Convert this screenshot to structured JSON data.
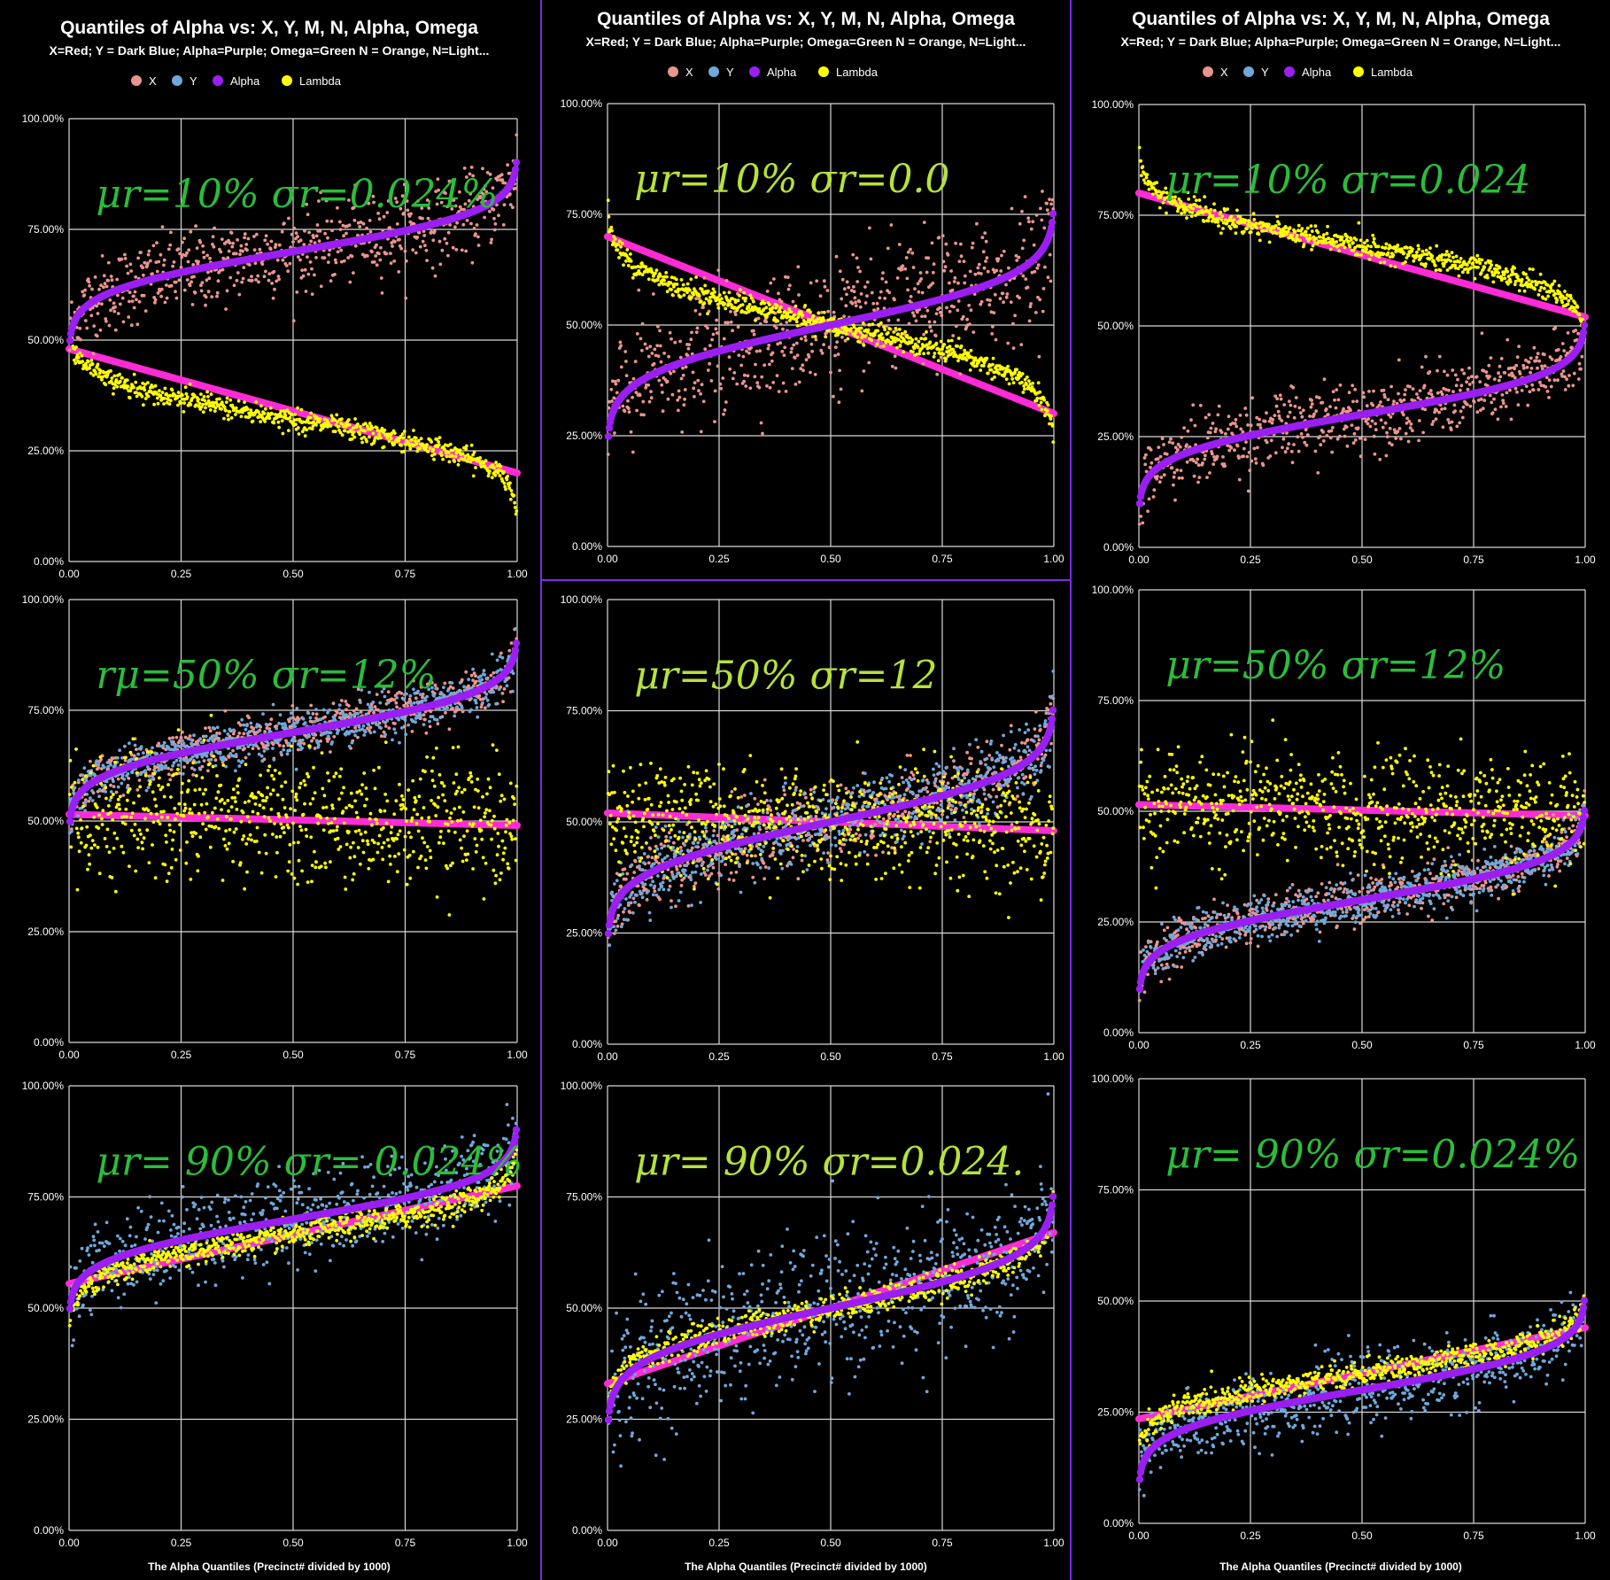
{
  "columns": [
    {
      "title": "Quantiles of Alpha vs: X, Y, M, N, Alpha, Omega",
      "subtitle": "X=Red; Y = Dark Blue; Alpha=Purple; Omega=Green N = Orange, N=Light...",
      "xlabel": "The Alpha Quantiles (Precinct# divided by 1000)",
      "legend": [
        {
          "label": "X",
          "color": "#e9958f"
        },
        {
          "label": "Y",
          "color": "#6fa8dc"
        },
        {
          "label": "Alpha",
          "color": "#9b1ff2"
        },
        {
          "label": "Lambda",
          "color": "#ffff00"
        }
      ]
    },
    {
      "title": "Quantiles of Alpha vs: X, Y, M, N, Alpha, Omega",
      "subtitle": "X=Red; Y = Dark Blue; Alpha=Purple; Omega=Green N = Orange, N=Light...",
      "xlabel": "The Alpha Quantiles (Precinct# divided by 1000)",
      "legend": [
        {
          "label": "X",
          "color": "#e9958f"
        },
        {
          "label": "Y",
          "color": "#6fa8dc"
        },
        {
          "label": "Alpha",
          "color": "#9b1ff2"
        },
        {
          "label": "Lambda",
          "color": "#ffff00"
        }
      ]
    },
    {
      "title": "Quantiles of Alpha vs: X, Y, M, N, Alpha, Omega",
      "subtitle": "X=Red; Y = Dark Blue; Alpha=Purple; Omega=Green N = Orange, N=Light...",
      "xlabel": "The Alpha Quantiles (Precinct# divided by 1000)",
      "legend": [
        {
          "label": "X",
          "color": "#e9958f"
        },
        {
          "label": "Y",
          "color": "#6fa8dc"
        },
        {
          "label": "Alpha",
          "color": "#9b1ff2"
        },
        {
          "label": "Lambda",
          "color": "#ffff00"
        }
      ]
    }
  ],
  "annotations": [
    {
      "text": "μr=10%   σr=0.024%",
      "color": "#2bbd3a"
    },
    {
      "text": "μr=10%   σr=0.0",
      "color": "#b6e23a"
    },
    {
      "text": "μr=10%   σr=0.024",
      "color": "#2bbd3a"
    },
    {
      "text": "rμ=50%   σr=12%",
      "color": "#2bbd3a"
    },
    {
      "text": "μr=50%   σr=12",
      "color": "#b6e23a"
    },
    {
      "text": "μr=50%   σr=12%",
      "color": "#2bbd3a"
    },
    {
      "text": "μr= 90%   σr= 0.024%",
      "color": "#2bbd3a"
    },
    {
      "text": "μr= 90%   σr=0.024.",
      "color": "#b6e23a"
    },
    {
      "text": "μr= 90%   σr=0.024%",
      "color": "#2bbd3a"
    }
  ],
  "chart_data": [
    {
      "type": "scatter",
      "ylim": [
        0,
        1
      ],
      "xlim": [
        0,
        1
      ],
      "xticks": [
        "0.00",
        "0.25",
        "0.50",
        "0.75",
        "1.00"
      ],
      "yticks": [
        "0.00%",
        "25.00%",
        "50.00%",
        "75.00%",
        "100.00%"
      ],
      "grid": true,
      "legend_position": "top",
      "series": [
        {
          "name": "X",
          "color": "#e9958f",
          "center": 0.7,
          "spread": 0.24,
          "noise": 0.045,
          "endpoint_sigma": 0.18
        },
        {
          "name": "Alpha",
          "color": "#9b1ff2",
          "center": 0.7,
          "spread": 0.24,
          "noise": 0.0
        },
        {
          "name": "Lambda",
          "color": "#ffff00",
          "center": 0.32,
          "spread": -0.24,
          "noise": 0.012,
          "trend": [
            0.5,
            0.2
          ]
        }
      ],
      "trendline": {
        "color": "#ff2bd6",
        "from": 0.48,
        "to": 0.2
      }
    },
    {
      "type": "scatter",
      "ylim": [
        0,
        1
      ],
      "xlim": [
        0,
        1
      ],
      "xticks": [
        "0.00",
        "0.25",
        "0.50",
        "0.75",
        "1.00"
      ],
      "yticks": [
        "0.00%",
        "25.00%",
        "50.00%",
        "75.00%",
        "100.00%"
      ],
      "grid": true,
      "legend_position": "top",
      "series": [
        {
          "name": "X",
          "color": "#e9958f",
          "center": 0.5,
          "spread": 0.3,
          "noise": 0.07
        },
        {
          "name": "Alpha",
          "color": "#9b1ff2",
          "center": 0.5,
          "spread": 0.3,
          "noise": 0.0
        },
        {
          "name": "Lambda",
          "color": "#ffff00",
          "center": 0.5,
          "spread": -0.3,
          "noise": 0.012
        }
      ],
      "trendline": {
        "color": "#ff2bd6",
        "from": 0.7,
        "to": 0.3
      }
    },
    {
      "type": "scatter",
      "ylim": [
        0,
        1
      ],
      "xlim": [
        0,
        1
      ],
      "xticks": [
        "0.00",
        "0.25",
        "0.50",
        "0.75",
        "1.00"
      ],
      "yticks": [
        "0.00%",
        "25.00%",
        "50.00%",
        "75.00%",
        "100.00%"
      ],
      "grid": true,
      "legend_position": "top",
      "series": [
        {
          "name": "X",
          "color": "#e9958f",
          "center": 0.3,
          "spread": 0.24,
          "noise": 0.04
        },
        {
          "name": "Alpha",
          "color": "#9b1ff2",
          "center": 0.3,
          "spread": 0.24,
          "noise": 0.0
        },
        {
          "name": "Lambda",
          "color": "#ffff00",
          "center": 0.68,
          "spread": -0.24,
          "noise": 0.012
        }
      ],
      "trendline": {
        "color": "#ff2bd6",
        "from": 0.8,
        "to": 0.52
      }
    },
    {
      "type": "scatter",
      "ylim": [
        0,
        1
      ],
      "xlim": [
        0,
        1
      ],
      "xticks": [
        "0.00",
        "0.25",
        "0.50",
        "0.75",
        "1.00"
      ],
      "yticks": [
        "0.00%",
        "25.00%",
        "50.00%",
        "75.00%",
        "100.00%"
      ],
      "grid": true,
      "series": [
        {
          "name": "X",
          "color": "#e9958f",
          "center": 0.7,
          "spread": 0.24,
          "noise": 0.025
        },
        {
          "name": "Y",
          "color": "#6fa8dc",
          "center": 0.7,
          "spread": 0.24,
          "noise": 0.025
        },
        {
          "name": "Alpha",
          "color": "#9b1ff2",
          "center": 0.7,
          "spread": 0.24,
          "noise": 0.0
        },
        {
          "name": "Lambda",
          "color": "#ffff00",
          "center": 0.505,
          "spread": 0.0,
          "noise": 0.07
        }
      ],
      "trendline": {
        "color": "#ff2bd6",
        "from": 0.515,
        "to": 0.49
      }
    },
    {
      "type": "scatter",
      "ylim": [
        0,
        1
      ],
      "xlim": [
        0,
        1
      ],
      "xticks": [
        "0.00",
        "0.25",
        "0.50",
        "0.75",
        "1.00"
      ],
      "yticks": [
        "0.00%",
        "25.00%",
        "50.00%",
        "75.00%",
        "100.00%"
      ],
      "grid": true,
      "series": [
        {
          "name": "X",
          "color": "#e9958f",
          "center": 0.5,
          "spread": 0.3,
          "noise": 0.04
        },
        {
          "name": "Y",
          "color": "#6fa8dc",
          "center": 0.5,
          "spread": 0.3,
          "noise": 0.04
        },
        {
          "name": "Alpha",
          "color": "#9b1ff2",
          "center": 0.5,
          "spread": 0.3,
          "noise": 0.0
        },
        {
          "name": "Lambda",
          "color": "#ffff00",
          "center": 0.5,
          "spread": 0.0,
          "noise": 0.06
        }
      ],
      "trendline": {
        "color": "#ff2bd6",
        "from": 0.52,
        "to": 0.48
      }
    },
    {
      "type": "scatter",
      "ylim": [
        0,
        1
      ],
      "xlim": [
        0,
        1
      ],
      "xticks": [
        "0.00",
        "0.25",
        "0.50",
        "0.75",
        "1.00"
      ],
      "yticks": [
        "0.00%",
        "25.00%",
        "50.00%",
        "75.00%",
        "100.00%"
      ],
      "grid": true,
      "series": [
        {
          "name": "X",
          "color": "#e9958f",
          "center": 0.3,
          "spread": 0.24,
          "noise": 0.025
        },
        {
          "name": "Y",
          "color": "#6fa8dc",
          "center": 0.3,
          "spread": 0.24,
          "noise": 0.025
        },
        {
          "name": "Alpha",
          "color": "#9b1ff2",
          "center": 0.3,
          "spread": 0.24,
          "noise": 0.0
        },
        {
          "name": "Lambda",
          "color": "#ffff00",
          "center": 0.5,
          "spread": 0.0,
          "noise": 0.06
        }
      ],
      "trendline": {
        "color": "#ff2bd6",
        "from": 0.515,
        "to": 0.49
      }
    },
    {
      "type": "scatter",
      "ylim": [
        0,
        1
      ],
      "xlim": [
        0,
        1
      ],
      "xticks": [
        "0.00",
        "0.25",
        "0.50",
        "0.75",
        "1.00"
      ],
      "yticks": [
        "0.00%",
        "25.00%",
        "50.00%",
        "75.00%",
        "100.00%"
      ],
      "grid": true,
      "series": [
        {
          "name": "Y",
          "color": "#6fa8dc",
          "center": 0.7,
          "spread": 0.24,
          "noise": 0.05
        },
        {
          "name": "Alpha",
          "color": "#9b1ff2",
          "center": 0.7,
          "spread": 0.24,
          "noise": 0.0
        },
        {
          "name": "Lambda",
          "color": "#ffff00",
          "center": 0.665,
          "spread": 0.22,
          "noise": 0.015
        }
      ],
      "trendline": {
        "color": "#ff2bd6",
        "from": 0.555,
        "to": 0.775
      }
    },
    {
      "type": "scatter",
      "ylim": [
        0,
        1
      ],
      "xlim": [
        0,
        1
      ],
      "xticks": [
        "0.00",
        "0.25",
        "0.50",
        "0.75",
        "1.00"
      ],
      "yticks": [
        "0.00%",
        "25.00%",
        "50.00%",
        "75.00%",
        "100.00%"
      ],
      "grid": true,
      "series": [
        {
          "name": "Y",
          "color": "#6fa8dc",
          "center": 0.5,
          "spread": 0.3,
          "noise": 0.08
        },
        {
          "name": "Alpha",
          "color": "#9b1ff2",
          "center": 0.5,
          "spread": 0.3,
          "noise": 0.0
        },
        {
          "name": "Lambda",
          "color": "#ffff00",
          "center": 0.5,
          "spread": 0.28,
          "noise": 0.015
        }
      ],
      "trendline": {
        "color": "#ff2bd6",
        "from": 0.33,
        "to": 0.67
      }
    },
    {
      "type": "scatter",
      "ylim": [
        0,
        1
      ],
      "xlim": [
        0,
        1
      ],
      "xticks": [
        "0.00",
        "0.25",
        "0.50",
        "0.75",
        "1.00"
      ],
      "yticks": [
        "0.00%",
        "25.00%",
        "50.00%",
        "75.00%",
        "100.00%"
      ],
      "grid": true,
      "series": [
        {
          "name": "Y",
          "color": "#6fa8dc",
          "center": 0.3,
          "spread": 0.24,
          "noise": 0.04
        },
        {
          "name": "Alpha",
          "color": "#9b1ff2",
          "center": 0.3,
          "spread": 0.24,
          "noise": 0.0
        },
        {
          "name": "Lambda",
          "color": "#ffff00",
          "center": 0.335,
          "spread": 0.2,
          "noise": 0.015
        }
      ],
      "trendline": {
        "color": "#ff2bd6",
        "from": 0.235,
        "to": 0.44
      }
    }
  ]
}
